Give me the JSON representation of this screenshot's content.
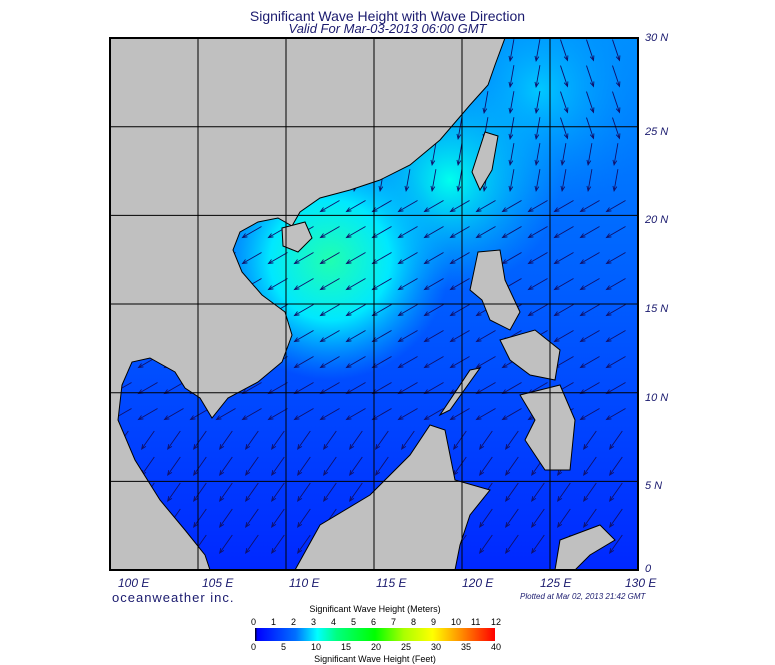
{
  "title": "Significant Wave Height with Wave Direction",
  "subtitle": "Valid For Mar-03-2013 06:00 GMT",
  "map": {
    "lon_labels": [
      "100 E",
      "105 E",
      "110 E",
      "115 E",
      "120 E",
      "125 E",
      "130 E"
    ],
    "lat_labels": [
      "30 N",
      "25 N",
      "20 N",
      "15 N",
      "10 N",
      "5 N",
      "0"
    ],
    "extent": {
      "lon": [
        100,
        130
      ],
      "lat": [
        0,
        30
      ]
    },
    "land_color": "#c0c0c0",
    "sea_low_color": "#0030ff",
    "sea_high_color": "#00ffd0"
  },
  "brand": "oceanweather inc.",
  "plotted": "Plotted at Mar 02, 2013 21:42 GMT",
  "legend": {
    "meters_title": "Significant Wave Height (Meters)",
    "meters_ticks": [
      "0",
      "1",
      "2",
      "3",
      "4",
      "5",
      "6",
      "7",
      "8",
      "9",
      "10",
      "11",
      "12"
    ],
    "feet_title": "Significant Wave Height (Feet)",
    "feet_ticks": [
      "0",
      "5",
      "10",
      "15",
      "20",
      "25",
      "30",
      "35",
      "40"
    ]
  }
}
